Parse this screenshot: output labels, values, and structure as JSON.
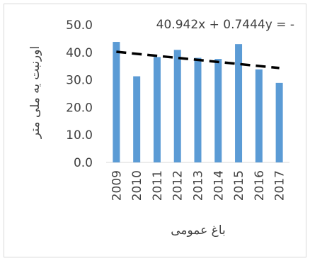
{
  "chart_data": {
    "type": "bar",
    "categories": [
      "2009",
      "2010",
      "2011",
      "2012",
      "2013",
      "2014",
      "2015",
      "2016",
      "2017"
    ],
    "values": [
      43.8,
      31.3,
      38.3,
      40.9,
      38.0,
      37.6,
      43.0,
      33.8,
      28.9
    ],
    "xlabel": "باغ عمومی",
    "ylabel": "اورنبت یه ملی متر",
    "ylim": [
      0,
      50
    ],
    "yticks": [
      "0.0",
      "10.0",
      "20.0",
      "30.0",
      "40.0",
      "50.0"
    ],
    "trendline": {
      "label": "40.942x + 0.7444y = -",
      "style": "dashed",
      "start_value": 40.2,
      "end_value": 34.3
    },
    "grid": false,
    "colors": {
      "bar": "#5b9bd5",
      "trendline": "#000000",
      "text": "#404040"
    }
  }
}
